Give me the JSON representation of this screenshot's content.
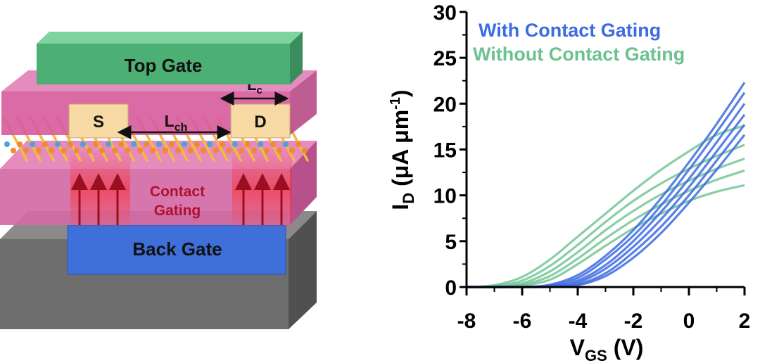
{
  "device": {
    "top_gate": "Top Gate",
    "source": "S",
    "drain": "D",
    "channel_length": {
      "main": "L",
      "sub": "ch"
    },
    "contact_length": {
      "main": "L",
      "sub": "c"
    },
    "contact_gating_line1": "Contact",
    "contact_gating_line2": "Gating",
    "back_gate": "Back Gate",
    "colors": {
      "top_gate": "#4caf74",
      "dielectric": "#d6508f",
      "contact_pad": "#f7d9a4",
      "back_gate": "#3f6fd8",
      "substrate": "#707070",
      "arrow": "#9b1020",
      "channel_atom_blue": "#4da3d6",
      "channel_atom_orange": "#f08a2c"
    },
    "icons": [
      "up-arrow-icon",
      "double-arrow-icon"
    ]
  },
  "chart_data": {
    "type": "line",
    "xlabel": {
      "main": "V",
      "sub": "GS",
      "suffix": " (V)"
    },
    "ylabel": {
      "prefix": "I",
      "sub": "D",
      "rest": " (μA μm",
      "sup": "-1",
      "close": ")"
    },
    "xlim": [
      -8,
      2
    ],
    "ylim": [
      0,
      30
    ],
    "xticks": [
      -8,
      -6,
      -4,
      -2,
      0,
      2
    ],
    "yticks": [
      0,
      5,
      10,
      15,
      20,
      25,
      30
    ],
    "grid": false,
    "legend": {
      "placement": "top-right",
      "entries": [
        {
          "label": "With Contact Gating",
          "color": "#3d6be0"
        },
        {
          "label": "Without Contact Gating",
          "color": "#6cc28e"
        }
      ]
    },
    "series": [
      {
        "group": "With Contact Gating",
        "color": "#3d6be0",
        "x": [
          -8,
          -6,
          -5,
          -4,
          -3,
          -2,
          -1,
          0,
          1,
          2
        ],
        "y": [
          0,
          0.02,
          0.25,
          1.3,
          3.4,
          6.2,
          9.7,
          13.6,
          17.8,
          22.3
        ]
      },
      {
        "group": "With Contact Gating",
        "color": "#3d6be0",
        "x": [
          -8,
          -6,
          -5,
          -4,
          -3,
          -2,
          -1,
          0,
          1,
          2
        ],
        "y": [
          0,
          0.02,
          0.15,
          1.0,
          3.0,
          5.6,
          8.9,
          12.8,
          16.9,
          21.2
        ]
      },
      {
        "group": "With Contact Gating",
        "color": "#3d6be0",
        "x": [
          -8,
          -6,
          -5,
          -4,
          -3,
          -2,
          -1,
          0,
          1,
          2
        ],
        "y": [
          0,
          0.01,
          0.1,
          0.7,
          2.4,
          5.0,
          8.2,
          11.8,
          15.8,
          20.0
        ]
      },
      {
        "group": "With Contact Gating",
        "color": "#3d6be0",
        "x": [
          -8,
          -6,
          -5,
          -4,
          -3,
          -2,
          -1,
          0,
          1,
          2
        ],
        "y": [
          0,
          0.01,
          0.05,
          0.5,
          2.0,
          4.4,
          7.4,
          10.9,
          14.8,
          18.8
        ]
      },
      {
        "group": "With Contact Gating",
        "color": "#3d6be0",
        "x": [
          -8,
          -6,
          -5,
          -4,
          -3,
          -2,
          -1,
          0,
          1,
          2
        ],
        "y": [
          0,
          0.0,
          0.03,
          0.3,
          1.5,
          3.8,
          6.6,
          10.0,
          13.8,
          17.7
        ]
      },
      {
        "group": "With Contact Gating",
        "color": "#3d6be0",
        "x": [
          -8,
          -6,
          -5,
          -4,
          -3,
          -2,
          -1,
          0,
          1,
          2
        ],
        "y": [
          0,
          0.0,
          0.02,
          0.2,
          1.2,
          3.2,
          5.9,
          9.2,
          12.8,
          16.6
        ]
      },
      {
        "group": "Without Contact Gating",
        "color": "#6cc28e",
        "x": [
          -8,
          -7,
          -6,
          -5,
          -4,
          -3,
          -2,
          -1,
          0,
          1,
          2
        ],
        "y": [
          0,
          0.2,
          1.1,
          3.0,
          5.5,
          8.0,
          10.5,
          12.8,
          14.8,
          16.6,
          17.6
        ]
      },
      {
        "group": "Without Contact Gating",
        "color": "#6cc28e",
        "x": [
          -8,
          -7,
          -6,
          -5,
          -4,
          -3,
          -2,
          -1,
          0,
          1,
          2
        ],
        "y": [
          0,
          0.1,
          0.7,
          2.3,
          4.6,
          7.1,
          9.4,
          11.3,
          12.9,
          14.3,
          15.5
        ]
      },
      {
        "group": "Without Contact Gating",
        "color": "#6cc28e",
        "x": [
          -8,
          -7,
          -6,
          -5,
          -4,
          -3,
          -2,
          -1,
          0,
          1,
          2
        ],
        "y": [
          0,
          0.05,
          0.4,
          1.7,
          3.8,
          6.2,
          8.3,
          10.1,
          11.6,
          12.9,
          14.0
        ]
      },
      {
        "group": "Without Contact Gating",
        "color": "#6cc28e",
        "x": [
          -8,
          -7,
          -6,
          -5,
          -4,
          -3,
          -2,
          -1,
          0,
          1,
          2
        ],
        "y": [
          0,
          0.02,
          0.25,
          1.2,
          3.1,
          5.3,
          7.3,
          9.0,
          10.5,
          11.7,
          12.7
        ]
      },
      {
        "group": "Without Contact Gating",
        "color": "#6cc28e",
        "x": [
          -8,
          -7,
          -6,
          -5,
          -4,
          -3,
          -2,
          -1,
          0,
          1,
          2
        ],
        "y": [
          0,
          0.01,
          0.15,
          0.8,
          2.5,
          4.5,
          6.4,
          8.0,
          9.4,
          10.4,
          11.1
        ]
      }
    ]
  }
}
